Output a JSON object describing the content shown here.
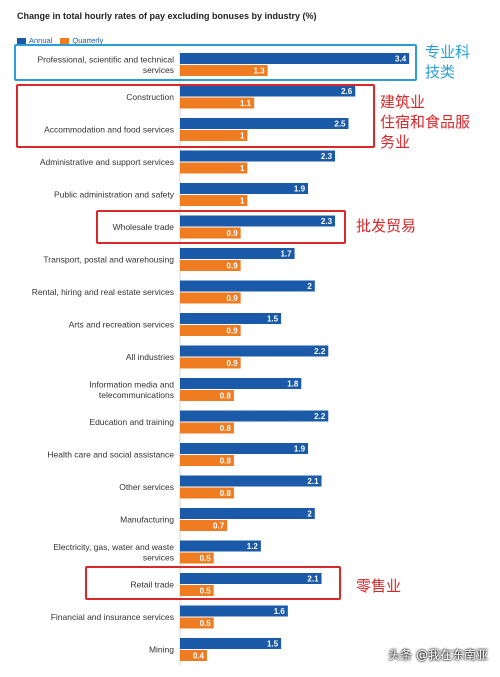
{
  "title": "Change in total hourly rates of pay excluding bonuses by industry (%)",
  "colors": {
    "annual": "#1a5aa8",
    "quarterly": "#f07c22",
    "highlight_blue": "#2a9fd6",
    "highlight_red": "#d8282a"
  },
  "chart_data": {
    "type": "bar",
    "orientation": "horizontal",
    "title": "Change in total hourly rates of pay excluding bonuses by industry (%)",
    "legend_position": "top-left",
    "grid": false,
    "xlim": [
      0,
      3.5
    ],
    "categories": [
      [
        "Professional, scientific and technical",
        "services"
      ],
      [
        "Construction"
      ],
      [
        "Accommodation and food services"
      ],
      [
        "Administrative and support services"
      ],
      [
        "Public administration and safety"
      ],
      [
        "Wholesale trade"
      ],
      [
        "Transport, postal and warehousing"
      ],
      [
        "Rental, hiring and real estate services"
      ],
      [
        "Arts and recreation services"
      ],
      [
        "All industries"
      ],
      [
        "Information media and",
        "telecommunications"
      ],
      [
        "Education and training"
      ],
      [
        "Health care and social assistance"
      ],
      [
        "Other services"
      ],
      [
        "Manufacturing"
      ],
      [
        "Electricity, gas, water and waste",
        "services"
      ],
      [
        "Retail trade"
      ],
      [
        "Financial and insurance services"
      ],
      [
        "Mining"
      ]
    ],
    "series": [
      {
        "name": "Annual",
        "color": "#1a5aa8",
        "values": [
          3.4,
          2.6,
          2.5,
          2.3,
          1.9,
          2.3,
          1.7,
          2,
          1.5,
          2.2,
          1.8,
          2.2,
          1.9,
          2.1,
          2,
          1.2,
          2.1,
          1.6,
          1.5
        ]
      },
      {
        "name": "Quarterly",
        "color": "#f07c22",
        "values": [
          1.3,
          1.1,
          1,
          1,
          1,
          0.9,
          0.9,
          0.9,
          0.9,
          0.9,
          0.8,
          0.8,
          0.8,
          0.8,
          0.7,
          0.5,
          0.5,
          0.5,
          0.4
        ]
      }
    ],
    "value_labels": {
      "annual": [
        "3.4",
        "2.6",
        "2.5",
        "2.3",
        "1.9",
        "2.3",
        "1.7",
        "2",
        "1.5",
        "2.2",
        "1.8",
        "2.2",
        "1.9",
        "2.1",
        "2",
        "1.2",
        "2.1",
        "1.6",
        "1.5"
      ],
      "quarterly": [
        "1.3",
        "1.1",
        "1",
        "1",
        "1",
        "0.9",
        "0.9",
        "0.9",
        "0.9",
        "0.9",
        "0.8",
        "0.8",
        "0.8",
        "0.8",
        "0.7",
        "0.5",
        "0.5",
        "0.5",
        "0.4"
      ]
    }
  },
  "annotations": {
    "professional": "专业科\n技类",
    "construction_accommodation": "建筑业\n住宿和食品服\n务业",
    "wholesale": "批发贸易",
    "retail": "零售业"
  },
  "watermark": "头条 @我在东南亚"
}
